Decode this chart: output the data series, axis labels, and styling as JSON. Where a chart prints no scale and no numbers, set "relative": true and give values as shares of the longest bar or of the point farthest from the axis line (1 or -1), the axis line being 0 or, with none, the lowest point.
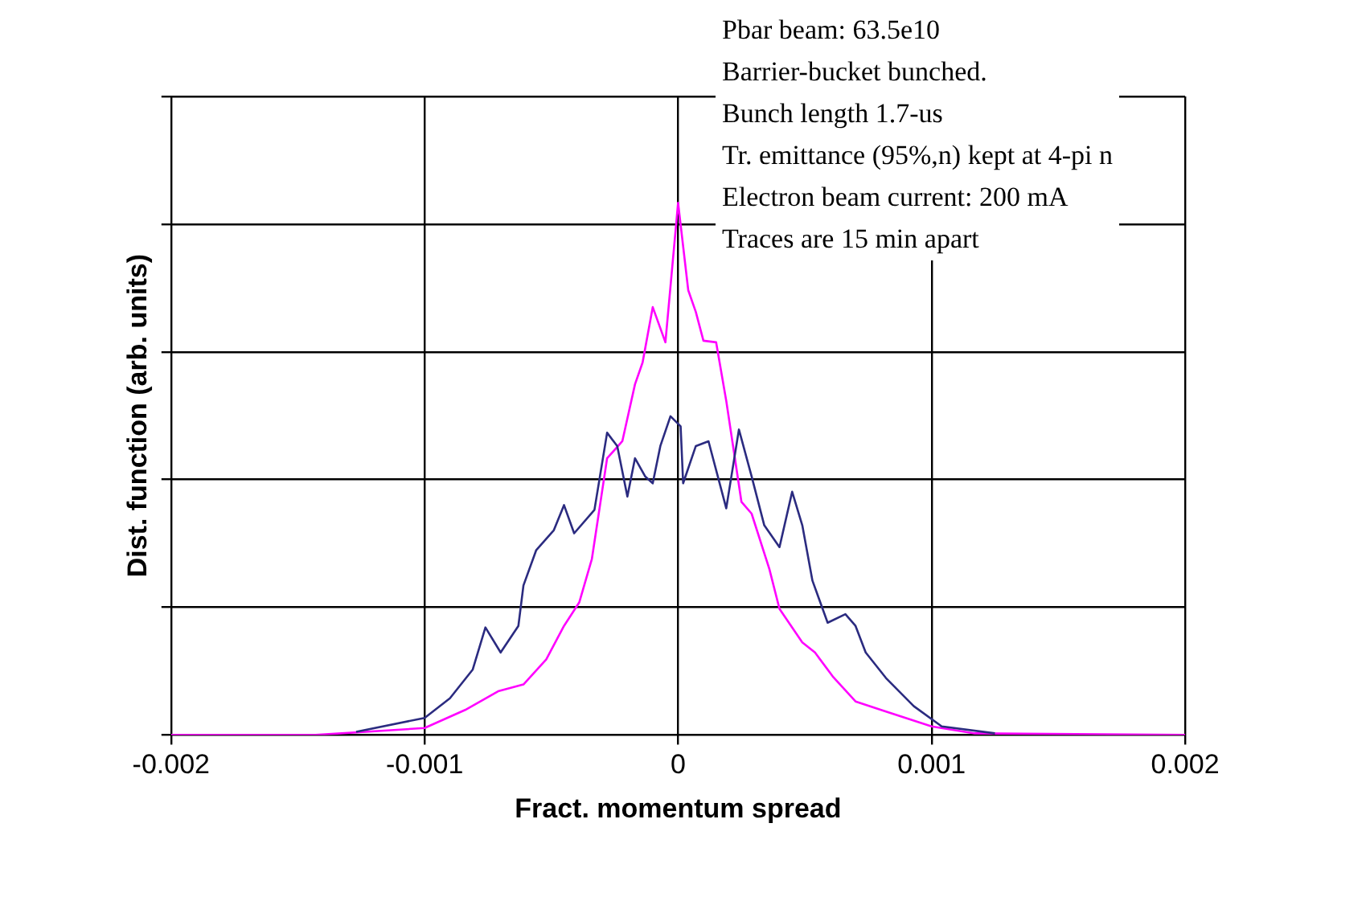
{
  "chart_data": {
    "type": "line",
    "xlabel": "Fract. momentum spread",
    "ylabel": "Dist. function (arb. units)",
    "annotations": [
      "Pbar beam: 63.5e10",
      "Barrier-bucket bunched.",
      "Bunch length 1.7-us",
      "Tr. emittance (95%,n) kept at 4-pi n",
      "Electron beam current: 200 mA",
      "Traces are 15 min apart"
    ],
    "relative": true,
    "xlim": [
      -0.002,
      0.002
    ],
    "xticks": [
      -0.002,
      -0.001,
      0,
      0.001,
      0.002
    ],
    "grid": true,
    "legend": false,
    "marker": "none",
    "series": [
      {
        "color": "#2b2b80",
        "x": [
          -0.00127,
          -0.001,
          -0.0009,
          -0.00081,
          -0.00076,
          -0.0007,
          -0.00063,
          -0.00061,
          -0.00056,
          -0.00049,
          -0.00045,
          -0.00041,
          -0.00033,
          -0.00028,
          -0.00024,
          -0.0002,
          -0.00017,
          -0.00013,
          -0.0001,
          -7e-05,
          -3e-05,
          1e-05,
          2e-05,
          7e-05,
          0.00012,
          0.00019,
          0.00024,
          0.00029,
          0.00034,
          0.0004,
          0.00045,
          0.00049,
          0.00053,
          0.00059,
          0.00066,
          0.0007,
          0.00074,
          0.00082,
          0.00093,
          0.00104,
          0.00125
        ],
        "values": [
          0.006,
          0.032,
          0.069,
          0.123,
          0.202,
          0.155,
          0.205,
          0.281,
          0.347,
          0.385,
          0.432,
          0.379,
          0.423,
          0.568,
          0.543,
          0.448,
          0.52,
          0.486,
          0.473,
          0.543,
          0.599,
          0.58,
          0.473,
          0.543,
          0.552,
          0.426,
          0.574,
          0.486,
          0.394,
          0.353,
          0.457,
          0.394,
          0.29,
          0.211,
          0.227,
          0.205,
          0.155,
          0.107,
          0.054,
          0.016,
          0.003
        ]
      },
      {
        "color": "#ff00ff",
        "x": [
          -0.002,
          -0.00143,
          -0.001,
          -0.00084,
          -0.00071,
          -0.00061,
          -0.00052,
          -0.00045,
          -0.00039,
          -0.00034,
          -0.00028,
          -0.00022,
          -0.00017,
          -0.00014,
          -0.0001,
          -5e-05,
          0,
          4e-05,
          7e-05,
          0.0001,
          0.00015,
          0.00019,
          0.00025,
          0.00029,
          0.00036,
          0.0004,
          0.00049,
          0.00054,
          0.00061,
          0.0007,
          0.00082,
          0.001,
          0.00117,
          0.002
        ],
        "values": [
          0,
          0,
          0.013,
          0.047,
          0.082,
          0.095,
          0.142,
          0.205,
          0.249,
          0.331,
          0.52,
          0.552,
          0.659,
          0.7,
          0.804,
          0.738,
          1,
          0.836,
          0.795,
          0.741,
          0.738,
          0.628,
          0.438,
          0.416,
          0.312,
          0.237,
          0.174,
          0.155,
          0.11,
          0.063,
          0.044,
          0.016,
          0.003,
          0
        ]
      }
    ]
  }
}
